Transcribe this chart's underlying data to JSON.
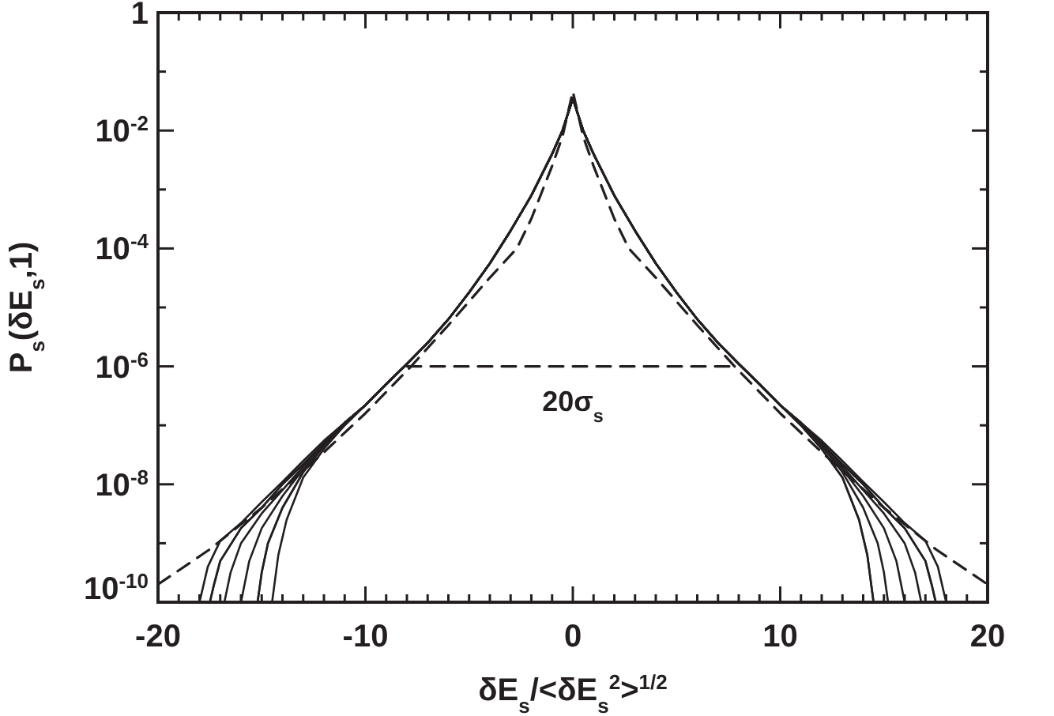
{
  "chart_data": {
    "type": "line",
    "xlabel": "δE$_{s}$/<δE$_{s}$$^{2}$>$^{1/2}$",
    "ylabel": "P$_{s}$(δE$_{s}$,1)",
    "log": true,
    "grid": false,
    "xlim": [
      -20,
      20
    ],
    "xticks": [
      -20,
      {
        "value": -19,
        "label": null
      },
      {
        "value": -18,
        "label": null
      },
      {
        "value": -17,
        "label": null
      },
      {
        "value": -16,
        "label": null
      },
      {
        "value": -15,
        "label": null
      },
      {
        "value": -14,
        "label": null
      },
      {
        "value": -13,
        "label": null
      },
      {
        "value": -12,
        "label": null
      },
      {
        "value": -11,
        "label": null
      },
      -10,
      {
        "value": -9,
        "label": null
      },
      {
        "value": -8,
        "label": null
      },
      {
        "value": -7,
        "label": null
      },
      {
        "value": -6,
        "label": null
      },
      {
        "value": -5,
        "label": null
      },
      {
        "value": -4,
        "label": null
      },
      {
        "value": -3,
        "label": null
      },
      {
        "value": -2,
        "label": null
      },
      {
        "value": -1,
        "label": null
      },
      0,
      {
        "value": 1,
        "label": null
      },
      {
        "value": 2,
        "label": null
      },
      {
        "value": 3,
        "label": null
      },
      {
        "value": 4,
        "label": null
      },
      {
        "value": 5,
        "label": null
      },
      {
        "value": 6,
        "label": null
      },
      {
        "value": 7,
        "label": null
      },
      {
        "value": 8,
        "label": null
      },
      {
        "value": 9,
        "label": null
      },
      10,
      {
        "value": 11,
        "label": null
      },
      {
        "value": 12,
        "label": null
      },
      {
        "value": 13,
        "label": null
      },
      {
        "value": 14,
        "label": null
      },
      {
        "value": 15,
        "label": null
      },
      {
        "value": 16,
        "label": null
      },
      {
        "value": 17,
        "label": null
      },
      {
        "value": 18,
        "label": null
      },
      {
        "value": 19,
        "label": null
      },
      20
    ],
    "ylim": [
      1e-10,
      1
    ],
    "yticks": [
      {
        "value": 1e-10,
        "label": "10$^{-10}$"
      },
      {
        "value": 1e-09,
        "label": null
      },
      {
        "value": 1e-08,
        "label": "10$^{-8}$"
      },
      {
        "value": 1e-07,
        "label": null
      },
      {
        "value": 1e-06,
        "label": "10$^{-6}$"
      },
      {
        "value": 1e-05,
        "label": null
      },
      {
        "value": 0.0001,
        "label": "10$^{-4}$"
      },
      {
        "value": 0.001,
        "label": null
      },
      {
        "value": 0.01,
        "label": "10$^{-2}$"
      },
      {
        "value": 0.1,
        "label": null
      },
      1
    ],
    "annotations": [
      {
        "text": "20σ$_{s}$",
        "x": 0,
        "y": 1e-06
      }
    ],
    "series": [
      {
        "color": "#231f20",
        "line_style": "solid",
        "x": [
          -18,
          -17.6,
          -17,
          -16,
          -15,
          -14,
          -13,
          -12,
          -11,
          -10,
          -9,
          -8,
          -7,
          -6,
          -5,
          -4,
          -3,
          -2,
          -1,
          -0.5,
          0,
          0.5,
          1,
          2,
          3,
          4,
          5,
          6,
          7,
          8,
          9,
          10,
          11,
          12,
          13,
          13.8,
          14.2,
          14.5
        ],
        "values": [
          1e-10,
          4e-10,
          1.1e-09,
          2.2e-09,
          5e-09,
          1.1e-08,
          2.5e-08,
          5.5e-08,
          1.1e-07,
          2.2e-07,
          5e-07,
          1.1e-06,
          2.5e-06,
          6.3e-06,
          1.8e-05,
          5.6e-05,
          0.0002,
          0.00079,
          0.004,
          0.01,
          0.035,
          0.01,
          0.004,
          0.00079,
          0.0002,
          5.6e-05,
          1.8e-05,
          6.3e-06,
          2.5e-06,
          1.1e-06,
          5e-07,
          2.2e-07,
          1e-07,
          4e-08,
          1.3e-08,
          2.5e-09,
          6.3e-10,
          1e-10
        ]
      },
      {
        "color": "#231f20",
        "line_style": "solid",
        "x": [
          -17.5,
          -17.3,
          -17,
          -16,
          -15,
          -14,
          -13,
          -12,
          -11,
          -10,
          -9,
          -8,
          -7,
          -6,
          -5,
          -4,
          -3,
          -2,
          -1,
          -0.5,
          0,
          0.5,
          1,
          2,
          3,
          4,
          5,
          6,
          7,
          8,
          9,
          10,
          11,
          12,
          13,
          14,
          14.7,
          15,
          15.2
        ],
        "values": [
          1e-10,
          2e-10,
          5e-10,
          1.8e-09,
          4e-09,
          1e-08,
          2.2e-08,
          5e-08,
          1.1e-07,
          2.2e-07,
          5e-07,
          1.1e-06,
          2.5e-06,
          6.3e-06,
          1.8e-05,
          5.6e-05,
          0.0002,
          0.00079,
          0.004,
          0.01,
          0.035,
          0.01,
          0.004,
          0.00079,
          0.0002,
          5.6e-05,
          1.8e-05,
          6.3e-06,
          2.5e-06,
          1.1e-06,
          5e-07,
          2.2e-07,
          1.1e-07,
          4.5e-08,
          1.6e-08,
          4e-09,
          1e-09,
          3.2e-10,
          1e-10
        ]
      },
      {
        "color": "#231f20",
        "line_style": "solid",
        "x": [
          -16.8,
          -16.5,
          -16,
          -15,
          -14,
          -13,
          -12,
          -11,
          -10,
          -9,
          -8,
          -7,
          -6,
          -5,
          -4,
          -3,
          -2,
          -1,
          -0.5,
          0,
          0.5,
          1,
          2,
          3,
          4,
          5,
          6,
          7,
          8,
          9,
          10,
          11,
          12,
          13,
          14,
          15,
          15.6,
          16
        ],
        "values": [
          1e-10,
          3.2e-10,
          1e-09,
          3.2e-09,
          8e-09,
          2e-08,
          5e-08,
          1.1e-07,
          2.2e-07,
          5e-07,
          1.1e-06,
          2.5e-06,
          6.3e-06,
          1.8e-05,
          5.6e-05,
          0.0002,
          0.00079,
          0.004,
          0.01,
          0.035,
          0.01,
          0.004,
          0.00079,
          0.0002,
          5.6e-05,
          1.8e-05,
          6.3e-06,
          2.5e-06,
          1.1e-06,
          5e-07,
          2.2e-07,
          1.1e-07,
          4.5e-08,
          1.8e-08,
          6.3e-09,
          1.8e-09,
          5e-10,
          1e-10
        ]
      },
      {
        "color": "#231f20",
        "line_style": "solid",
        "x": [
          -16,
          -15.6,
          -15,
          -14,
          -13,
          -12,
          -11,
          -10,
          -9,
          -8,
          -7,
          -6,
          -5,
          -4,
          -3,
          -2,
          -1,
          -0.5,
          0,
          0.5,
          1,
          2,
          3,
          4,
          5,
          6,
          7,
          8,
          9,
          10,
          11,
          12,
          13,
          14,
          15,
          16,
          16.5,
          16.8
        ],
        "values": [
          1e-10,
          5e-10,
          1.8e-09,
          6.3e-09,
          1.8e-08,
          4.5e-08,
          1.1e-07,
          2.2e-07,
          5e-07,
          1.1e-06,
          2.5e-06,
          6.3e-06,
          1.8e-05,
          5.6e-05,
          0.0002,
          0.00079,
          0.004,
          0.01,
          0.035,
          0.01,
          0.004,
          0.00079,
          0.0002,
          5.6e-05,
          1.8e-05,
          6.3e-06,
          2.5e-06,
          1.1e-06,
          5e-07,
          2.2e-07,
          1.1e-07,
          5e-08,
          2e-08,
          8e-09,
          3.2e-09,
          1e-09,
          3.2e-10,
          1e-10
        ]
      },
      {
        "color": "#231f20",
        "line_style": "solid",
        "x": [
          -15.2,
          -15,
          -14.7,
          -14,
          -13,
          -12,
          -11,
          -10,
          -9,
          -8,
          -7,
          -6,
          -5,
          -4,
          -3,
          -2,
          -1,
          -0.5,
          0,
          0.5,
          1,
          2,
          3,
          4,
          5,
          6,
          7,
          8,
          9,
          10,
          11,
          12,
          13,
          14,
          15,
          16,
          17,
          17.3,
          17.5
        ],
        "values": [
          1e-10,
          3.2e-10,
          1e-09,
          4e-09,
          1.6e-08,
          4.5e-08,
          1.1e-07,
          2.2e-07,
          5e-07,
          1.1e-06,
          2.5e-06,
          6.3e-06,
          1.8e-05,
          5.6e-05,
          0.0002,
          0.00079,
          0.004,
          0.01,
          0.035,
          0.01,
          0.004,
          0.00079,
          0.0002,
          5.6e-05,
          1.8e-05,
          6.3e-06,
          2.5e-06,
          1.1e-06,
          5e-07,
          2.2e-07,
          1.1e-07,
          5e-08,
          2.2e-08,
          1e-08,
          4e-09,
          1.8e-09,
          5e-10,
          2e-10,
          1e-10
        ]
      },
      {
        "color": "#231f20",
        "line_style": "solid",
        "x": [
          -14.5,
          -14.2,
          -13.8,
          -13,
          -12,
          -11,
          -10,
          -9,
          -8,
          -7,
          -6,
          -5,
          -4,
          -3,
          -2,
          -1,
          -0.5,
          0,
          0.5,
          1,
          2,
          3,
          4,
          5,
          6,
          7,
          8,
          9,
          10,
          11,
          12,
          13,
          14,
          15,
          16,
          17,
          17.6,
          18
        ],
        "values": [
          1e-10,
          6.3e-10,
          2.5e-09,
          1.3e-08,
          4e-08,
          1e-07,
          2.2e-07,
          5e-07,
          1.1e-06,
          2.5e-06,
          6.3e-06,
          1.8e-05,
          5.6e-05,
          0.0002,
          0.00079,
          0.004,
          0.01,
          0.035,
          0.01,
          0.004,
          0.00079,
          0.0002,
          5.6e-05,
          1.8e-05,
          6.3e-06,
          2.5e-06,
          1.1e-06,
          5e-07,
          2.2e-07,
          1.1e-07,
          5.5e-08,
          2.5e-08,
          1.1e-08,
          5e-09,
          2.2e-09,
          1.1e-09,
          4e-10,
          1e-10
        ]
      },
      {
        "color": "#231f20",
        "line_style": "solid",
        "x": [
          -17.5,
          -17.3,
          -17,
          -16,
          -15,
          -14,
          -13,
          -12,
          -11,
          -10,
          -9,
          -8,
          -7,
          -6,
          -5,
          -4,
          -3,
          -2,
          -1,
          -0.5,
          0,
          0.5,
          1,
          2,
          3,
          4,
          5,
          6,
          7,
          8,
          9,
          10,
          11,
          12,
          13,
          14,
          15,
          16,
          17,
          17.3,
          17.5
        ],
        "values": [
          1e-10,
          2e-10,
          5e-10,
          1.8e-09,
          4e-09,
          1e-08,
          2.2e-08,
          5e-08,
          1.1e-07,
          2.2e-07,
          5e-07,
          1.1e-06,
          2.5e-06,
          6.3e-06,
          1.8e-05,
          5.6e-05,
          0.0002,
          0.00079,
          0.004,
          0.01,
          0.035,
          0.01,
          0.004,
          0.00079,
          0.0002,
          5.6e-05,
          1.8e-05,
          6.3e-06,
          2.5e-06,
          1.1e-06,
          5e-07,
          2.2e-07,
          1.1e-07,
          5e-08,
          2.2e-08,
          1e-08,
          4e-09,
          1.8e-09,
          5e-10,
          2e-10,
          1e-10
        ]
      },
      {
        "color": "#231f20",
        "line_style": "solid",
        "x": [
          -15.2,
          -15,
          -14.7,
          -14,
          -13,
          -12,
          -11,
          -10,
          -9,
          -8,
          -7,
          -6,
          -5,
          -4,
          -3,
          -2,
          -1,
          -0.5,
          0,
          0.5,
          1,
          2,
          3,
          4,
          5,
          6,
          7,
          8,
          9,
          10,
          11,
          12,
          13,
          13.8,
          14.2,
          14.5
        ],
        "values": [
          1e-10,
          3.2e-10,
          1e-09,
          4e-09,
          1.6e-08,
          4.5e-08,
          1.1e-07,
          2.2e-07,
          5e-07,
          1.1e-06,
          2.5e-06,
          6.3e-06,
          1.8e-05,
          5.6e-05,
          0.0002,
          0.00079,
          0.004,
          0.01,
          0.035,
          0.01,
          0.004,
          0.00079,
          0.0002,
          5.6e-05,
          1.8e-05,
          6.3e-06,
          2.5e-06,
          1.1e-06,
          5e-07,
          2.2e-07,
          1e-07,
          4e-08,
          1.3e-08,
          2.5e-09,
          6.3e-10,
          1e-10
        ]
      },
      {
        "color": "#231f20",
        "line_style": "dashed",
        "x": [
          -20,
          -17.5,
          -15,
          -12,
          -10,
          -7.8,
          -6,
          -4,
          -2.7,
          -2,
          -1,
          -0.5,
          0,
          0.5,
          1,
          2,
          2.7,
          4,
          6,
          7.8,
          10,
          12,
          15,
          17.5,
          20
        ],
        "values": [
          2e-10,
          7.9e-10,
          4e-09,
          3.5e-08,
          1.6e-07,
          1e-06,
          5e-06,
          3.2e-05,
          0.0001,
          0.00032,
          0.0025,
          0.0079,
          0.046,
          0.0079,
          0.0025,
          0.00032,
          0.0001,
          3.2e-05,
          5e-06,
          1e-06,
          1.6e-07,
          3.5e-08,
          4e-09,
          7.9e-10,
          2e-10
        ]
      },
      {
        "color": "#231f20",
        "line_style": "dashed",
        "x": [
          -8,
          8
        ],
        "values": [
          1e-06,
          1e-06
        ]
      }
    ]
  }
}
